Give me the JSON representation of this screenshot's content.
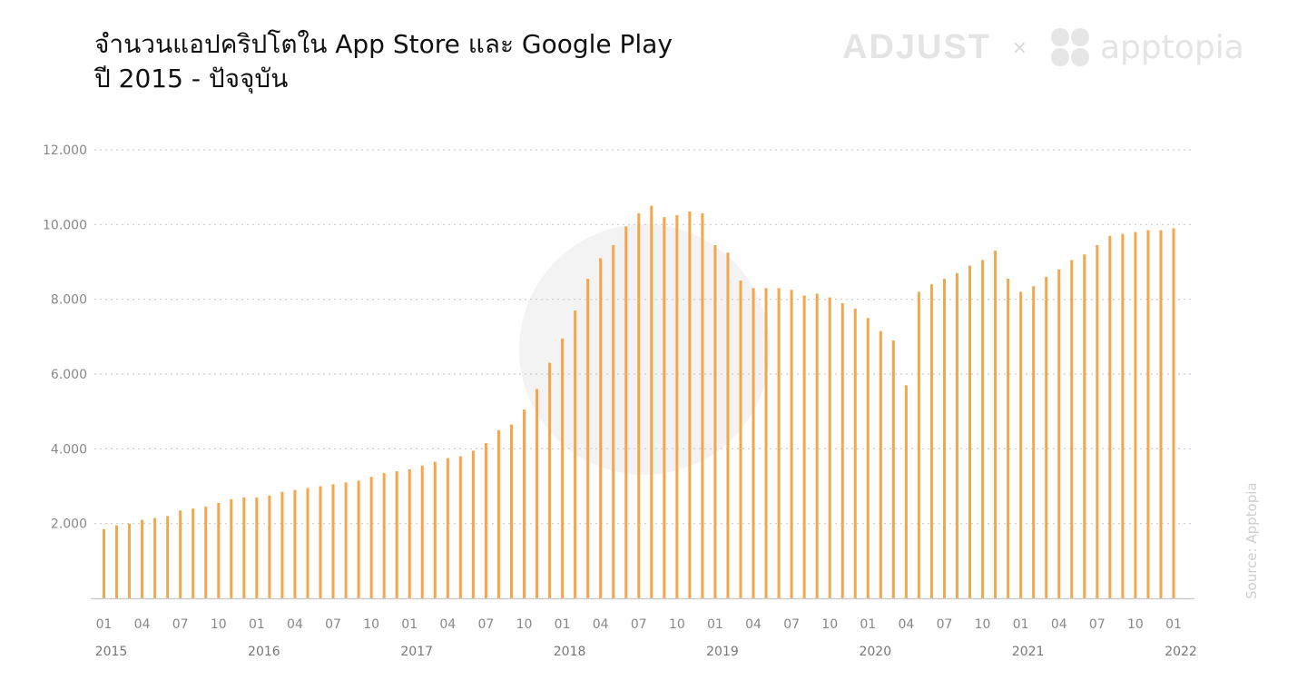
{
  "title_line1": "จำนวนแอปคริปโตใน App Store และ Google Play",
  "title_line2": "ปี 2015 - ปัจจุบัน",
  "brand_left": "ADJUST",
  "brand_separator": "×",
  "brand_right": "apptopia",
  "source": "Source: Apptopia",
  "colors": {
    "bar": "#f5a54a",
    "grid": "#cccccc",
    "axis": "#cccccc",
    "watermark": "#f3f3f3"
  },
  "chart_data": {
    "type": "bar",
    "ylim": [
      0,
      12000
    ],
    "y_ticks": [
      {
        "value": 2000,
        "label": "2.000"
      },
      {
        "value": 4000,
        "label": "4.000"
      },
      {
        "value": 6000,
        "label": "6.000"
      },
      {
        "value": 8000,
        "label": "8.000"
      },
      {
        "value": 10000,
        "label": "10.000"
      },
      {
        "value": 12000,
        "label": "12.000"
      }
    ],
    "month_ticks": [
      "01",
      "04",
      "07",
      "10",
      "01",
      "04",
      "07",
      "10",
      "01",
      "04",
      "07",
      "10",
      "01",
      "04",
      "07",
      "10",
      "01",
      "04",
      "07",
      "10",
      "01",
      "04",
      "07",
      "10",
      "01",
      "04",
      "07",
      "10",
      "01"
    ],
    "years": [
      "2015",
      "2016",
      "2017",
      "2018",
      "2019",
      "2020",
      "2021",
      "2022"
    ],
    "categories": [
      "2015-01",
      "2015-02",
      "2015-03",
      "2015-04",
      "2015-05",
      "2015-06",
      "2015-07",
      "2015-08",
      "2015-09",
      "2015-10",
      "2015-11",
      "2015-12",
      "2016-01",
      "2016-02",
      "2016-03",
      "2016-04",
      "2016-05",
      "2016-06",
      "2016-07",
      "2016-08",
      "2016-09",
      "2016-10",
      "2016-11",
      "2016-12",
      "2017-01",
      "2017-02",
      "2017-03",
      "2017-04",
      "2017-05",
      "2017-06",
      "2017-07",
      "2017-08",
      "2017-09",
      "2017-10",
      "2017-11",
      "2017-12",
      "2018-01",
      "2018-02",
      "2018-03",
      "2018-04",
      "2018-05",
      "2018-06",
      "2018-07",
      "2018-08",
      "2018-09",
      "2018-10",
      "2018-11",
      "2018-12",
      "2019-01",
      "2019-02",
      "2019-03",
      "2019-04",
      "2019-05",
      "2019-06",
      "2019-07",
      "2019-08",
      "2019-09",
      "2019-10",
      "2019-11",
      "2019-12",
      "2020-01",
      "2020-02",
      "2020-03",
      "2020-04",
      "2020-05",
      "2020-06",
      "2020-07",
      "2020-08",
      "2020-09",
      "2020-10",
      "2020-11",
      "2020-12",
      "2021-01",
      "2021-02",
      "2021-03",
      "2021-04",
      "2021-05",
      "2021-06",
      "2021-07",
      "2021-08",
      "2021-09",
      "2021-10",
      "2021-11",
      "2021-12",
      "2022-01"
    ],
    "values": [
      1850,
      1950,
      2000,
      2100,
      2150,
      2200,
      2350,
      2400,
      2450,
      2550,
      2650,
      2700,
      2700,
      2750,
      2850,
      2900,
      2950,
      3000,
      3050,
      3100,
      3150,
      3250,
      3350,
      3400,
      3450,
      3550,
      3650,
      3750,
      3800,
      3950,
      4150,
      4500,
      4650,
      5050,
      5600,
      6300,
      6950,
      7700,
      8550,
      9100,
      9450,
      9950,
      10300,
      10500,
      10200,
      10250,
      10350,
      10300,
      9450,
      9250,
      8500,
      8300,
      8300,
      8300,
      8250,
      8100,
      8150,
      8050,
      7900,
      7750,
      7500,
      7150,
      6900,
      5700,
      8200,
      8400,
      8550,
      8700,
      8900,
      9050,
      9300,
      8550,
      8200,
      8350,
      8600,
      8800,
      9050,
      9200,
      9450,
      9700,
      9750,
      9800,
      9850,
      9850,
      9900
    ]
  }
}
